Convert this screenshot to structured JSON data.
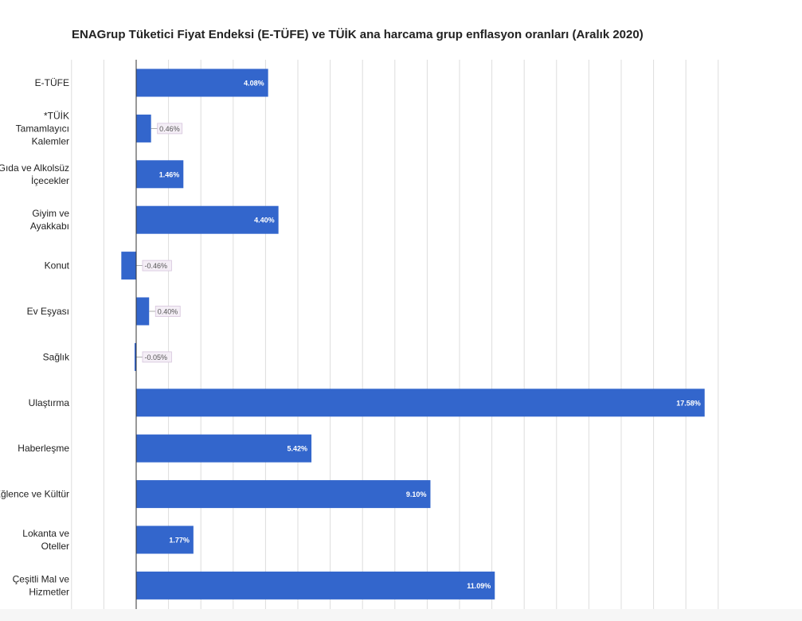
{
  "chart_data": {
    "type": "bar",
    "orientation": "horizontal",
    "title": "ENAGrup Tüketici Fiyat Endeksi (E-TÜFE) ve TÜİK ana harcama grup enflasyon oranları (Aralık 2020)",
    "categories": [
      [
        "E-TÜFE"
      ],
      [
        "*TÜİK",
        "Tamamlayıcı",
        "Kalemler"
      ],
      [
        "Gıda ve Alkolsüz",
        "İçecekler"
      ],
      [
        "Giyim ve",
        "Ayakkabı"
      ],
      [
        "Konut"
      ],
      [
        "Ev Eşyası"
      ],
      [
        "Sağlık"
      ],
      [
        "Ulaştırma"
      ],
      [
        "Haberleşme"
      ],
      [
        "Eğlence ve Kültür"
      ],
      [
        "Lokanta ve",
        "Oteller"
      ],
      [
        "Çeşitli Mal ve",
        "Hizmetler"
      ]
    ],
    "values": [
      4.08,
      0.46,
      1.46,
      4.4,
      -0.46,
      0.4,
      -0.05,
      17.58,
      5.42,
      9.1,
      1.77,
      11.09
    ],
    "data_labels": [
      "4.08%",
      "0.46%",
      "1.46%",
      "4.40%",
      "-0.46%",
      "0.40%",
      "-0.05%",
      "17.58%",
      "5.42%",
      "9.10%",
      "1.77%",
      "11.09%"
    ],
    "xlim": [
      -2,
      18
    ],
    "grid": true,
    "legend": "none",
    "bar_color": "#3366cc"
  }
}
